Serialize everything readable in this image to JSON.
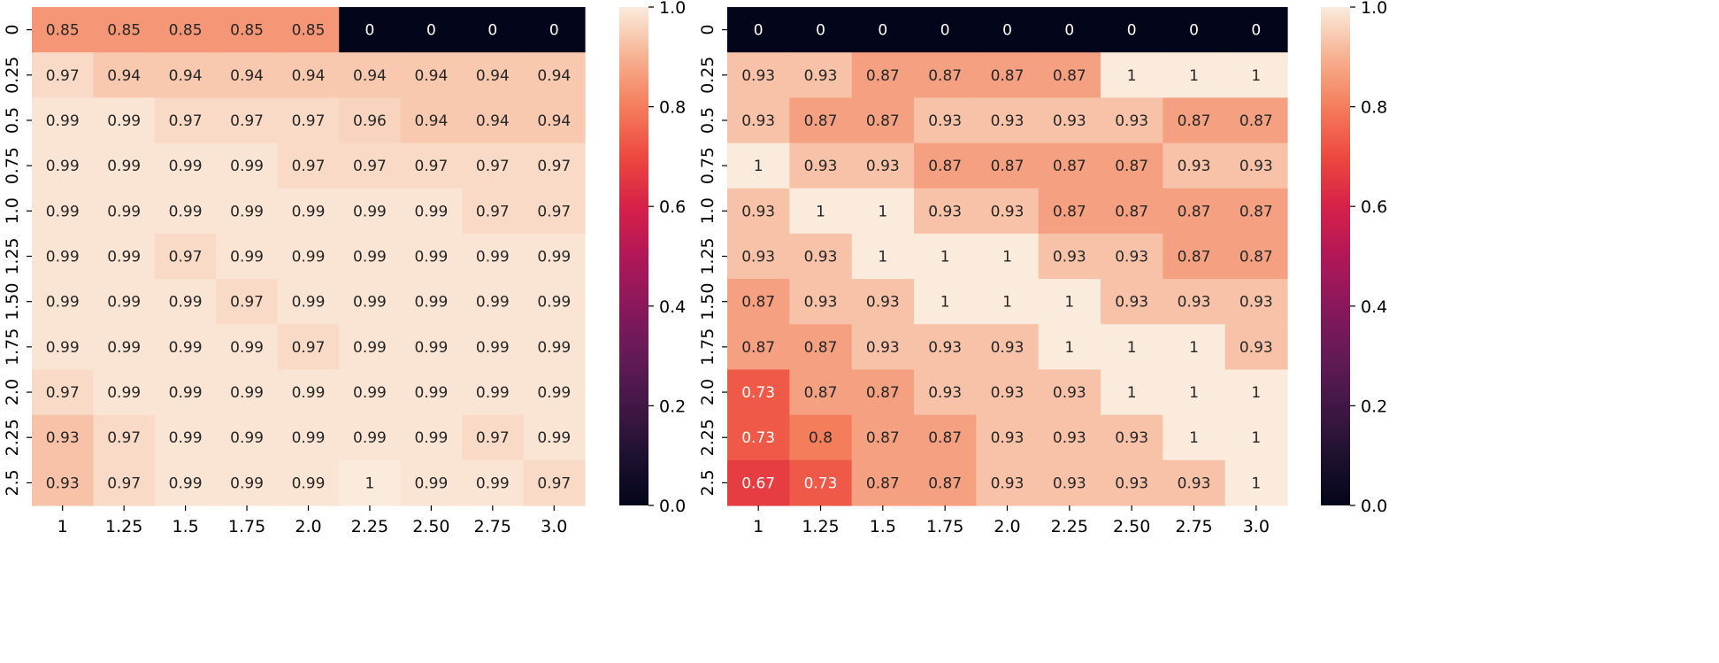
{
  "chart_data": [
    {
      "type": "heatmap",
      "title": "",
      "xlabel": "",
      "ylabel": "",
      "x_tick_labels": [
        "1",
        "1.25",
        "1.5",
        "1.75",
        "2.0",
        "2.25",
        "2.50",
        "2.75",
        "3.0"
      ],
      "y_tick_labels": [
        "0",
        "0.25",
        "0.5",
        "0.75",
        "1.0",
        "1.25",
        "1.50",
        "1.75",
        "2.0",
        "2.25",
        "2.5"
      ],
      "values": [
        [
          0.85,
          0.85,
          0.85,
          0.85,
          0.85,
          0,
          0,
          0,
          0
        ],
        [
          0.97,
          0.94,
          0.94,
          0.94,
          0.94,
          0.94,
          0.94,
          0.94,
          0.94
        ],
        [
          0.99,
          0.99,
          0.97,
          0.97,
          0.97,
          0.96,
          0.94,
          0.94,
          0.94
        ],
        [
          0.99,
          0.99,
          0.99,
          0.99,
          0.97,
          0.97,
          0.97,
          0.97,
          0.97
        ],
        [
          0.99,
          0.99,
          0.99,
          0.99,
          0.99,
          0.99,
          0.99,
          0.97,
          0.97
        ],
        [
          0.99,
          0.99,
          0.97,
          0.99,
          0.99,
          0.99,
          0.99,
          0.99,
          0.99
        ],
        [
          0.99,
          0.99,
          0.99,
          0.97,
          0.99,
          0.99,
          0.99,
          0.99,
          0.99
        ],
        [
          0.99,
          0.99,
          0.99,
          0.99,
          0.97,
          0.99,
          0.99,
          0.99,
          0.99
        ],
        [
          0.97,
          0.99,
          0.99,
          0.99,
          0.99,
          0.99,
          0.99,
          0.99,
          0.99
        ],
        [
          0.93,
          0.97,
          0.99,
          0.99,
          0.99,
          0.99,
          0.99,
          0.97,
          0.99
        ],
        [
          0.93,
          0.97,
          0.99,
          0.99,
          0.99,
          1,
          0.99,
          0.99,
          0.97
        ]
      ],
      "colorbar": {
        "min": 0.0,
        "max": 1.0,
        "ticks": [
          "0.0",
          "0.2",
          "0.4",
          "0.6",
          "0.8",
          "1.0"
        ]
      }
    },
    {
      "type": "heatmap",
      "title": "",
      "xlabel": "",
      "ylabel": "",
      "x_tick_labels": [
        "1",
        "1.25",
        "1.5",
        "1.75",
        "2.0",
        "2.25",
        "2.50",
        "2.75",
        "3.0"
      ],
      "y_tick_labels": [
        "0",
        "0.25",
        "0.5",
        "0.75",
        "1.0",
        "1.25",
        "1.50",
        "1.75",
        "2.0",
        "2.25",
        "2.5"
      ],
      "values": [
        [
          0,
          0,
          0,
          0,
          0,
          0,
          0,
          0,
          0
        ],
        [
          0.93,
          0.93,
          0.87,
          0.87,
          0.87,
          0.87,
          1,
          1,
          1
        ],
        [
          0.93,
          0.87,
          0.87,
          0.93,
          0.93,
          0.93,
          0.93,
          0.87,
          0.87
        ],
        [
          1,
          0.93,
          0.93,
          0.87,
          0.87,
          0.87,
          0.87,
          0.93,
          0.93
        ],
        [
          0.93,
          1,
          1,
          0.93,
          0.93,
          0.87,
          0.87,
          0.87,
          0.87
        ],
        [
          0.93,
          0.93,
          1,
          1,
          1,
          0.93,
          0.93,
          0.87,
          0.87
        ],
        [
          0.87,
          0.93,
          0.93,
          1,
          1,
          1,
          0.93,
          0.93,
          0.93
        ],
        [
          0.87,
          0.87,
          0.93,
          0.93,
          0.93,
          1,
          1,
          1,
          0.93
        ],
        [
          0.73,
          0.87,
          0.87,
          0.93,
          0.93,
          0.93,
          1,
          1,
          1
        ],
        [
          0.73,
          0.8,
          0.87,
          0.87,
          0.93,
          0.93,
          0.93,
          1,
          1
        ],
        [
          0.67,
          0.73,
          0.87,
          0.87,
          0.93,
          0.93,
          0.93,
          0.93,
          1
        ]
      ],
      "colorbar": {
        "min": 0.0,
        "max": 1.0,
        "ticks": [
          "0.0",
          "0.2",
          "0.4",
          "0.6",
          "0.8",
          "1.0"
        ]
      }
    }
  ]
}
